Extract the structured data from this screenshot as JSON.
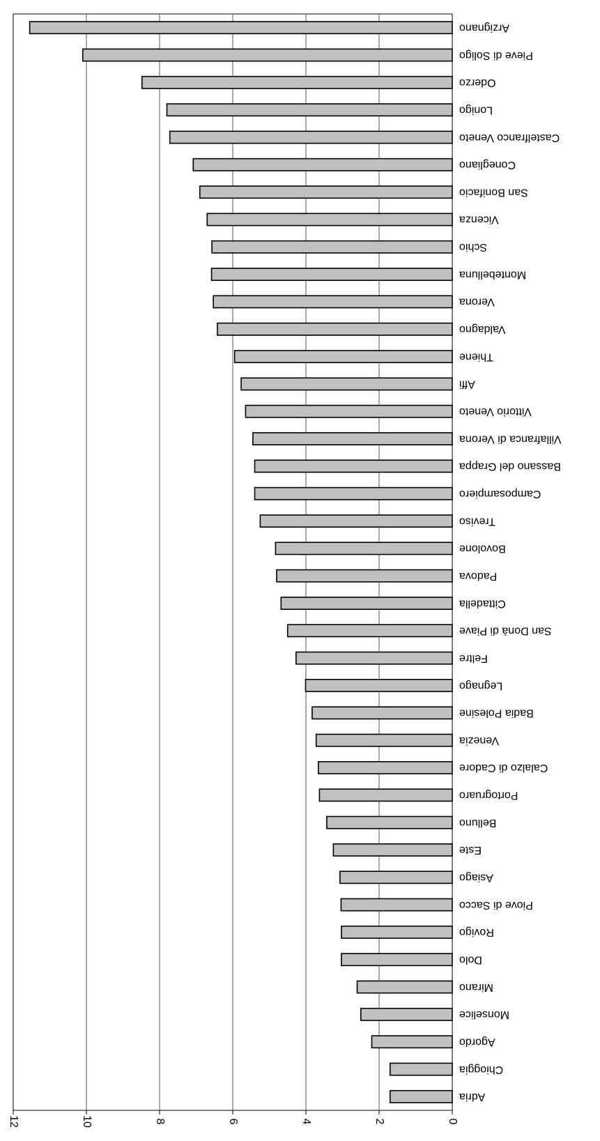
{
  "chart_data": {
    "type": "bar",
    "orientation": "horizontal",
    "rendering": "rotated-180",
    "categories": [
      "Arzignano",
      "Pieve di Soligo",
      "Oderzo",
      "Lonigo",
      "Castelfranco Veneto",
      "Conegliano",
      "San Bonifacio",
      "Vicenza",
      "Schio",
      "Montebelluna",
      "Verona",
      "Valdagno",
      "Thiene",
      "Affi",
      "Vittorio Veneto",
      "Villafranca di Verona",
      "Bassano del Grappa",
      "Camposampiero",
      "Treviso",
      "Bovolone",
      "Padova",
      "Cittadella",
      "San Donà di Piave",
      "Feltre",
      "Legnago",
      "Badia Polesine",
      "Venezia",
      "Calalzo di Cadore",
      "Portogruaro",
      "Belluno",
      "Este",
      "Asiago",
      "Piove di Sacco",
      "Rovigo",
      "Dolo",
      "Mirano",
      "Monselice",
      "Agordo",
      "Chioggia",
      "Adria"
    ],
    "values": [
      11.55,
      10.1,
      8.48,
      7.8,
      7.72,
      7.08,
      6.9,
      6.7,
      6.57,
      6.58,
      6.53,
      6.42,
      5.95,
      5.77,
      5.65,
      5.45,
      5.4,
      5.4,
      5.25,
      4.83,
      4.8,
      4.68,
      4.5,
      4.27,
      4.01,
      3.83,
      3.72,
      3.66,
      3.63,
      3.43,
      3.25,
      3.07,
      3.04,
      3.03,
      3.03,
      2.6,
      2.5,
      2.2,
      1.7,
      1.7
    ],
    "ticks": [
      "0",
      "2",
      "4",
      "6",
      "8",
      "10",
      "12"
    ],
    "xlim": [
      0,
      12
    ],
    "grid": true,
    "bar_color": "#c0c0c0",
    "title": "",
    "xlabel": "",
    "ylabel": ""
  }
}
